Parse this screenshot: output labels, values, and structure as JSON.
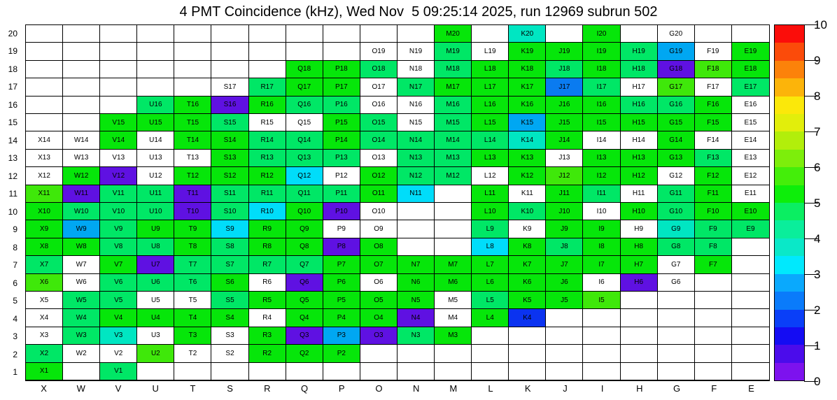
{
  "title": "4 PMT Coincidence (kHz), Wed Nov  5 09:25:14 2025, run 12969 subrun 502",
  "chart_data": {
    "type": "heatmap",
    "title": "4 PMT Coincidence (kHz), Wed Nov  5 09:25:14 2025, run 12969 subrun 502",
    "xlabel": "",
    "ylabel": "",
    "columns": [
      "X",
      "W",
      "V",
      "U",
      "T",
      "S",
      "R",
      "Q",
      "P",
      "O",
      "N",
      "M",
      "L",
      "K",
      "J",
      "I",
      "H",
      "G",
      "F",
      "E"
    ],
    "rows": [
      20,
      19,
      18,
      17,
      16,
      15,
      14,
      13,
      12,
      11,
      10,
      9,
      8,
      7,
      6,
      5,
      4,
      3,
      2,
      1
    ],
    "legend_position": "right-colorbar",
    "grid": true,
    "palette": {
      "g": "#06e60a",
      "l": "#3fe80a",
      "s": "#00e766",
      "t": "#00e6c2",
      "c": "#00ddfa",
      "b": "#00a7f2",
      "B": "#0a7bf0",
      "K": "#0b33f0",
      "v": "#5f11e2",
      "w": "#ffffff"
    },
    "palette_values_khz": {
      "g": 5.2,
      "l": 5.7,
      "s": 4.7,
      "t": 3.8,
      "c": 3.3,
      "b": 2.8,
      "B": 2.3,
      "K": 1.7,
      "v": 0.4,
      "w": 0
    },
    "cells": [
      [
        "",
        "",
        "",
        "",
        "",
        "",
        "",
        "",
        "",
        "",
        "",
        "M20:g",
        "",
        "K20:t",
        "",
        "I20:g",
        "",
        "G20:w",
        "",
        ""
      ],
      [
        "",
        "",
        "",
        "",
        "",
        "",
        "",
        "",
        "",
        "O19:w",
        "N19:w",
        "M19:s",
        "L19:w",
        "K19:g",
        "J19:g",
        "I19:g",
        "H19:s",
        "G19:b",
        "F19:w",
        "E19:g"
      ],
      [
        "",
        "",
        "",
        "",
        "",
        "",
        "",
        "Q18:g",
        "P18:g",
        "O18:s",
        "N18:w",
        "M18:s",
        "L18:g",
        "K18:g",
        "J18:s",
        "I18:g",
        "H18:s",
        "G18:v",
        "F18:l",
        "E18:g"
      ],
      [
        "",
        "",
        "",
        "",
        "",
        "S17:w",
        "R17:s",
        "Q17:g",
        "P17:g",
        "O17:w",
        "N17:s",
        "M17:g",
        "L17:g",
        "K17:g",
        "J17:B",
        "I17:s",
        "H17:w",
        "G17:l",
        "F17:w",
        "E17:s"
      ],
      [
        "",
        "",
        "",
        "U16:s",
        "T16:g",
        "S16:v",
        "R16:g",
        "Q16:s",
        "P16:s",
        "O16:w",
        "N16:w",
        "M16:s",
        "L16:g",
        "K16:g",
        "J16:g",
        "I16:g",
        "H16:s",
        "G16:s",
        "F16:g",
        "E16:w"
      ],
      [
        "",
        "",
        "V15:g",
        "U15:g",
        "T15:g",
        "S15:s",
        "R15:w",
        "Q15:w",
        "P15:g",
        "O15:s",
        "N15:w",
        "M15:s",
        "L15:g",
        "K15:b",
        "J15:g",
        "I15:g",
        "H15:g",
        "G15:g",
        "F15:g",
        "E15:w"
      ],
      [
        "X14:w",
        "W14:w",
        "V14:g",
        "U14:w",
        "T14:g",
        "S14:g",
        "R14:s",
        "Q14:s",
        "P14:g",
        "O14:s",
        "N14:s",
        "M14:s",
        "L14:s",
        "K14:t",
        "J14:g",
        "I14:w",
        "H14:w",
        "G14:g",
        "F14:w",
        "E14:w"
      ],
      [
        "X13:w",
        "W13:w",
        "V13:w",
        "U13:w",
        "T13:w",
        "S13:g",
        "R13:s",
        "Q13:s",
        "P13:s",
        "O13:w",
        "N13:s",
        "M13:s",
        "L13:g",
        "K13:g",
        "J13:w",
        "I13:g",
        "H13:g",
        "G13:g",
        "F13:s",
        "E13:w"
      ],
      [
        "X12:w",
        "W12:g",
        "V12:v",
        "U12:w",
        "T12:g",
        "S12:g",
        "R12:g",
        "Q12:c",
        "P12:w",
        "O12:g",
        "N12:s",
        "M12:s",
        "L12:w",
        "K12:g",
        "J12:l",
        "I12:g",
        "H12:g",
        "G12:w",
        "F12:g",
        "E12:w"
      ],
      [
        "X11:l",
        "W11:v",
        "V11:s",
        "U11:s",
        "T11:v",
        "S11:s",
        "R11:s",
        "Q11:s",
        "P11:s",
        "O11:g",
        "N11:c",
        "",
        "L11:g",
        "K11:w",
        "J11:g",
        "I11:s",
        "H11:w",
        "G11:s",
        "F11:g",
        "E11:w"
      ],
      [
        "X10:g",
        "W10:s",
        "V10:s",
        "U10:s",
        "T10:v",
        "S10:s",
        "R10:c",
        "Q10:g",
        "P10:v",
        "O10:w",
        "",
        "",
        "L10:g",
        "K10:s",
        "J10:g",
        "I10:w",
        "H10:g",
        "G10:s",
        "F10:g",
        "E10:g"
      ],
      [
        "X9:g",
        "W9:b",
        "V9:s",
        "U9:g",
        "T9:g",
        "S9:c",
        "R9:g",
        "Q9:g",
        "P9:w",
        "O9:w",
        "",
        "",
        "L9:s",
        "K9:w",
        "J9:g",
        "I9:g",
        "H9:w",
        "G9:t",
        "F9:s",
        "E9:s"
      ],
      [
        "X8:g",
        "W8:g",
        "V8:s",
        "U8:s",
        "T8:g",
        "S8:s",
        "R8:g",
        "Q8:g",
        "P8:v",
        "O8:g",
        "",
        "",
        "L8:c",
        "K8:g",
        "J8:s",
        "I8:g",
        "H8:g",
        "G8:s",
        "F8:s",
        ""
      ],
      [
        "X7:s",
        "W7:w",
        "V7:g",
        "U7:v",
        "T7:s",
        "S7:s",
        "R7:s",
        "Q7:s",
        "P7:g",
        "O7:g",
        "N7:g",
        "M7:g",
        "L7:g",
        "K7:g",
        "J7:g",
        "I7:g",
        "H7:g",
        "G7:w",
        "F7:g",
        ""
      ],
      [
        "X6:l",
        "W6:w",
        "V6:s",
        "U6:s",
        "T6:s",
        "S6:g",
        "R6:w",
        "Q6:v",
        "P6:g",
        "O6:w",
        "N6:g",
        "M6:g",
        "L6:g",
        "K6:g",
        "J6:g",
        "I6:w",
        "H6:v",
        "G6:w",
        "",
        ""
      ],
      [
        "X5:w",
        "W5:s",
        "V5:s",
        "U5:w",
        "T5:w",
        "S5:s",
        "R5:g",
        "Q5:g",
        "P5:g",
        "O5:g",
        "N5:g",
        "M5:w",
        "L5:s",
        "K5:g",
        "J5:g",
        "I5:l",
        "",
        "",
        "",
        ""
      ],
      [
        "X4:w",
        "W4:s",
        "V4:g",
        "U4:g",
        "T4:g",
        "S4:g",
        "R4:w",
        "Q4:g",
        "P4:g",
        "O4:g",
        "N4:v",
        "M4:w",
        "L4:g",
        "K4:K",
        "",
        "",
        "",
        "",
        "",
        ""
      ],
      [
        "X3:w",
        "W3:s",
        "V3:t",
        "U3:w",
        "T3:g",
        "S3:w",
        "R3:g",
        "Q3:v",
        "P3:b",
        "O3:v",
        "N3:s",
        "M3:g",
        "",
        "",
        "",
        "",
        "",
        "",
        "",
        ""
      ],
      [
        "X2:s",
        "W2:w",
        "V2:w",
        "U2:l",
        "T2:w",
        "S2:w",
        "R2:g",
        "Q2:g",
        "P2:g",
        "",
        "",
        "",
        "",
        "",
        "",
        "",
        "",
        "",
        "",
        ""
      ],
      [
        "X1:g",
        "",
        "V1:s",
        "",
        "",
        "",
        "",
        "",
        "",
        "",
        "",
        "",
        "",
        "",
        "",
        "",
        "",
        "",
        "",
        ""
      ]
    ],
    "colorbar": {
      "min": 0,
      "max": 10,
      "tick_labels": [
        "0",
        "1",
        "2",
        "3",
        "4",
        "5",
        "6",
        "7",
        "8",
        "9",
        "10"
      ],
      "bands_bottom_to_top": [
        "#7d12ee",
        "#4b0ceb",
        "#140cf3",
        "#0a3ff8",
        "#0a7bfb",
        "#0aa9fd",
        "#00e9fd",
        "#0ae8c8",
        "#0aee9b",
        "#0bee62",
        "#0dee0a",
        "#44ee0a",
        "#7dee0b",
        "#b2ee0b",
        "#e2ee0b",
        "#fbe80a",
        "#fcb40a",
        "#fc820a",
        "#fb4b0a",
        "#fb0d0a"
      ]
    }
  }
}
